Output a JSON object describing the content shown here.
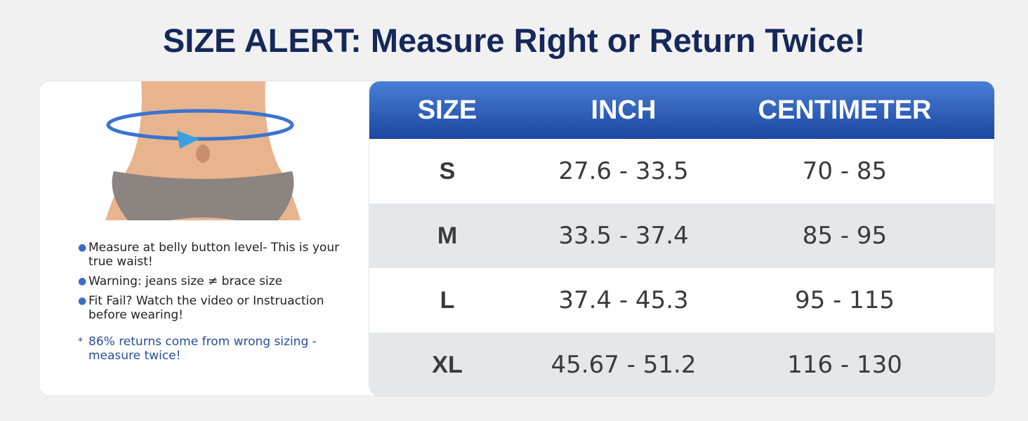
{
  "header": {
    "title": "SIZE ALERT: Measure Right or Return Twice!"
  },
  "tips": [
    "Measure at belly button level- This is your true waist!",
    "Warning: jeans size ≠ brace size",
    "Fit Fail? Watch the video or Instruaction before wearing!"
  ],
  "note": {
    "marker": "*",
    "text": "86% returns come from wrong sizing - measure twice!"
  },
  "table": {
    "columns": [
      "SIZE",
      "INCH",
      "CENTIMETER"
    ],
    "rows": [
      [
        "S",
        "27.6 - 33.5",
        "70 - 85"
      ],
      [
        "M",
        "33.5 - 37.4",
        "85 - 95"
      ],
      [
        "L",
        "37.4 - 45.3",
        "95 - 115"
      ],
      [
        "XL",
        "45.67 - 51.2",
        "116 - 130"
      ]
    ]
  }
}
